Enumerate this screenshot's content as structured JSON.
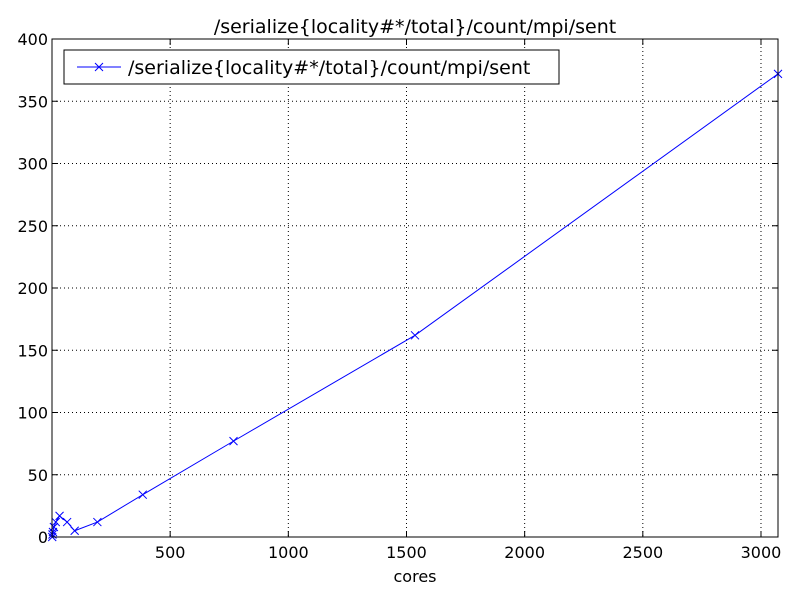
{
  "chart_data": {
    "type": "line",
    "title": "/serialize{locality#*/total}/count/mpi/sent",
    "xlabel": "cores",
    "ylabel": "",
    "xlim": [
      0,
      3072
    ],
    "ylim": [
      0,
      400
    ],
    "xticks": [
      500,
      1000,
      1500,
      2000,
      2500,
      3000
    ],
    "yticks": [
      0,
      50,
      100,
      150,
      200,
      250,
      300,
      350,
      400
    ],
    "grid": true,
    "legend_position": "top-left",
    "series": [
      {
        "name": "/serialize{locality#*/total}/count/mpi/sent",
        "color": "#0000ff",
        "marker": "x",
        "x": [
          1,
          2,
          4,
          8,
          16,
          32,
          64,
          96,
          192,
          384,
          768,
          1536,
          3072
        ],
        "y": [
          0,
          2,
          4,
          8,
          12,
          17,
          12,
          5,
          12,
          34,
          77,
          162,
          372
        ]
      }
    ]
  }
}
